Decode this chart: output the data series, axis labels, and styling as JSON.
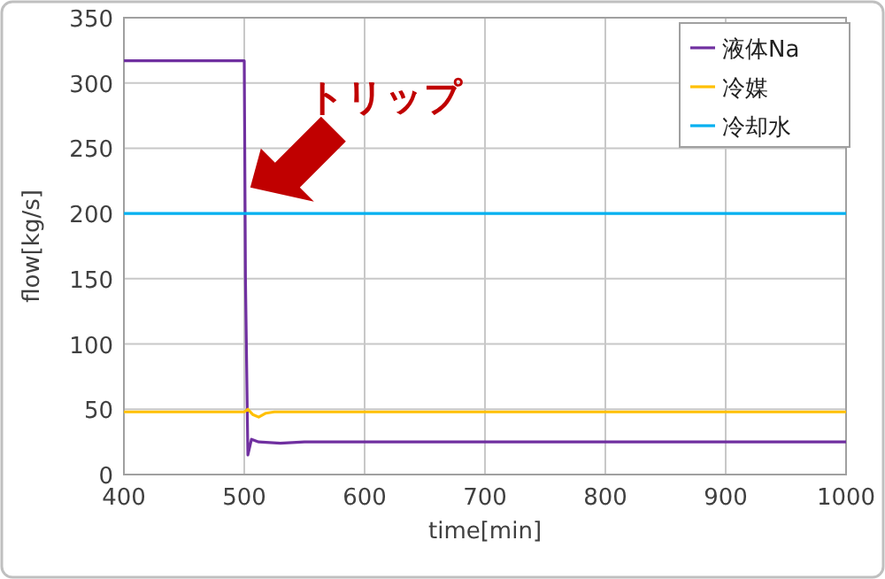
{
  "chart_data": {
    "type": "line",
    "xlabel": "time[min]",
    "ylabel": "flow[kg/s]",
    "xlim": [
      400,
      1000
    ],
    "xticks": [
      400,
      500,
      600,
      700,
      800,
      900,
      1000
    ],
    "ylim": [
      0,
      350
    ],
    "yticks": [
      0,
      50,
      100,
      150,
      200,
      250,
      300,
      350
    ],
    "grid": true,
    "legend": "top right",
    "marker": "none",
    "line_style": "solid",
    "series": [
      {
        "name": "液体Na",
        "color": "#7030a0",
        "x": [
          400,
          500,
          501,
          503,
          506,
          512,
          530,
          550,
          1000
        ],
        "values": [
          317,
          317,
          150,
          15,
          27,
          25,
          24,
          25,
          25
        ]
      },
      {
        "name": "冷媒",
        "color": "#ffc000",
        "x": [
          400,
          500,
          503,
          507,
          512,
          518,
          525,
          1000
        ],
        "values": [
          48,
          48,
          50,
          46,
          44,
          47,
          48,
          48
        ]
      },
      {
        "name": "冷却水",
        "color": "#00b0f0",
        "x": [
          400,
          1000
        ],
        "values": [
          200,
          200
        ]
      }
    ],
    "annotations": [
      {
        "text": "トリップ",
        "x": 505,
        "y": 220
      }
    ]
  }
}
